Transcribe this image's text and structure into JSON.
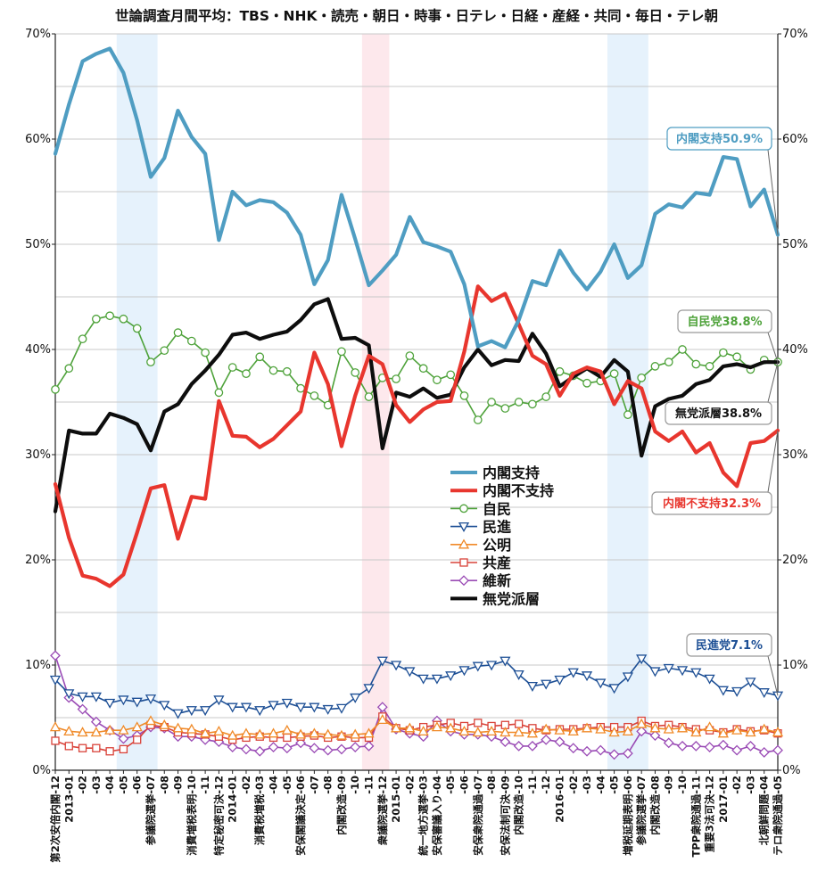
{
  "chart_data": {
    "type": "line",
    "title": "世論調査月間平均：TBS・NHK・読売・朝日・時事・日テレ・日経・産経・共同・毎日・テレ朝",
    "ylim": [
      0,
      70
    ],
    "y_ticks": [
      "0%",
      "10%",
      "20%",
      "30%",
      "40%",
      "50%",
      "60%",
      "70%"
    ],
    "grid": true,
    "x_labels": [
      "第2次安倍内閣-12",
      "2013-01",
      "-02",
      "-03",
      "-04",
      "-05",
      "-06",
      "参議院選挙-07",
      "-08",
      "-09",
      "消費増税表明-10",
      "-11",
      "特定秘密可決-12",
      "2014-01",
      "-02",
      "消費税増税-03",
      "-04",
      "-05",
      "安保閣議決定-06",
      "-07",
      "-08",
      "内閣改造-09",
      "-10",
      "-11",
      "衆議院選挙-12",
      "2015-01",
      "-02",
      "統一地方選挙-03",
      "安保審議入り-04",
      "-05",
      "-06",
      "安保衆院通過-07",
      "-08",
      "安保法制可決-09",
      "内閣改造-10",
      "-11",
      "-12",
      "2016-01",
      "-02",
      "-03",
      "-04",
      "-05",
      "増税延期表明-06",
      "参議院選挙-07",
      "内閣改造-08",
      "-09",
      "-10",
      "TPP衆院通過-11",
      "重要3法可決-12",
      "2017-01",
      "-02",
      "-03",
      "北朝鮮問題-04",
      "テロ衆院通過-05"
    ],
    "shaded_periods": [
      {
        "from": 5,
        "to": 7,
        "color": "#e6f2fc"
      },
      {
        "from": 23,
        "to": 24,
        "color": "#fde8ec"
      },
      {
        "from": 41,
        "to": 43,
        "color": "#e6f2fc"
      }
    ],
    "series": [
      {
        "name": "内閣支持",
        "color": "#4f9dc2",
        "marker": "none",
        "values": [
          58.6,
          63.3,
          67.4,
          68.1,
          68.6,
          66.3,
          61.8,
          56.4,
          58.2,
          62.7,
          60.2,
          58.6,
          50.4,
          55.0,
          53.7,
          54.2,
          54.0,
          53.0,
          50.9,
          46.2,
          48.5,
          54.7,
          50.5,
          46.1,
          47.5,
          49.0,
          52.6,
          50.2,
          49.8,
          49.3,
          46.2,
          40.3,
          40.8,
          40.2,
          42.8,
          46.5,
          46.1,
          49.4,
          47.3,
          45.7,
          47.4,
          50.0,
          46.8,
          48.0,
          52.9,
          53.8,
          53.5,
          54.9,
          54.7,
          58.3,
          58.1,
          53.6,
          55.2,
          50.9
        ]
      },
      {
        "name": "内閣不支持",
        "color": "#e8362e",
        "marker": "none",
        "values": [
          27.2,
          22.1,
          18.5,
          18.2,
          17.5,
          18.6,
          22.6,
          26.8,
          27.1,
          22.0,
          26.0,
          25.8,
          35.1,
          31.8,
          31.7,
          30.7,
          31.5,
          32.8,
          34.1,
          39.7,
          36.7,
          30.8,
          35.6,
          39.4,
          38.6,
          34.7,
          33.1,
          34.3,
          35.0,
          35.1,
          39.8,
          46.0,
          44.6,
          45.3,
          42.4,
          39.4,
          38.6,
          35.6,
          37.7,
          38.3,
          37.9,
          34.8,
          37.0,
          36.3,
          32.2,
          31.3,
          32.2,
          30.2,
          31.1,
          28.3,
          27.0,
          31.1,
          31.3,
          32.3
        ]
      },
      {
        "name": "自民",
        "color": "#4ea23a",
        "marker": "circle",
        "values": [
          36.2,
          38.2,
          41.0,
          42.9,
          43.2,
          42.9,
          42.0,
          38.8,
          39.9,
          41.6,
          40.8,
          39.7,
          35.9,
          38.3,
          37.7,
          39.3,
          38.0,
          37.9,
          36.3,
          35.6,
          34.7,
          39.8,
          37.8,
          35.5,
          37.3,
          37.2,
          39.4,
          38.2,
          37.1,
          37.6,
          35.6,
          33.3,
          35.0,
          34.4,
          35.0,
          34.8,
          35.5,
          37.9,
          37.5,
          36.8,
          37.0,
          37.7,
          33.8,
          37.3,
          38.4,
          38.8,
          40.0,
          38.6,
          38.4,
          39.7,
          39.3,
          38.1,
          39.0,
          38.8
        ]
      },
      {
        "name": "民進",
        "color": "#1d4f95",
        "marker": "triangle-down",
        "values": [
          8.6,
          7.3,
          7.0,
          7.0,
          6.4,
          6.7,
          6.5,
          6.8,
          6.2,
          5.4,
          5.7,
          5.7,
          6.7,
          6.0,
          6.0,
          5.7,
          6.2,
          6.4,
          6.0,
          6.0,
          5.8,
          5.9,
          6.9,
          7.8,
          10.4,
          10.0,
          9.4,
          8.7,
          8.7,
          9.0,
          9.5,
          9.9,
          10.0,
          10.4,
          9.1,
          8.0,
          8.2,
          8.6,
          9.3,
          9.0,
          8.3,
          7.8,
          8.9,
          10.6,
          9.4,
          9.7,
          9.5,
          9.3,
          8.7,
          7.6,
          7.5,
          8.4,
          7.4,
          7.1
        ]
      },
      {
        "name": "公明",
        "color": "#f08a28",
        "marker": "triangle-up",
        "values": [
          4.1,
          3.7,
          3.6,
          3.6,
          3.8,
          3.8,
          4.1,
          4.7,
          4.3,
          4.0,
          3.9,
          3.5,
          3.7,
          3.3,
          3.5,
          3.4,
          3.5,
          3.8,
          3.4,
          3.5,
          3.4,
          3.3,
          3.4,
          3.5,
          4.8,
          4.0,
          4.0,
          3.7,
          4.1,
          4.0,
          3.7,
          3.6,
          3.7,
          3.6,
          3.6,
          3.5,
          3.9,
          3.8,
          3.7,
          4.0,
          3.9,
          3.6,
          3.7,
          4.4,
          4.0,
          3.9,
          4.0,
          3.6,
          4.1,
          3.5,
          3.8,
          3.6,
          3.9,
          3.6
        ]
      },
      {
        "name": "共産",
        "color": "#d9433a",
        "marker": "square",
        "values": [
          2.8,
          2.3,
          2.1,
          2.1,
          1.8,
          2.0,
          2.9,
          4.3,
          4.1,
          3.6,
          3.5,
          3.4,
          3.2,
          2.9,
          3.1,
          3.2,
          3.1,
          3.1,
          3.2,
          3.3,
          3.1,
          3.2,
          3.1,
          3.1,
          5.1,
          4.0,
          3.8,
          4.1,
          4.3,
          4.5,
          4.2,
          4.5,
          4.2,
          4.3,
          4.4,
          4.0,
          3.8,
          3.9,
          3.9,
          4.0,
          4.1,
          4.1,
          4.1,
          4.7,
          4.2,
          4.3,
          4.1,
          3.9,
          3.8,
          3.6,
          3.9,
          3.7,
          3.8,
          3.5
        ]
      },
      {
        "name": "維新",
        "color": "#9a4bb5",
        "marker": "diamond",
        "values": [
          10.9,
          6.9,
          5.8,
          4.6,
          3.8,
          3.0,
          3.3,
          4.1,
          4.0,
          3.2,
          3.2,
          2.9,
          2.7,
          2.2,
          2.0,
          1.8,
          2.2,
          2.1,
          2.6,
          2.1,
          1.9,
          2.0,
          2.2,
          2.3,
          6.0,
          3.9,
          3.5,
          3.2,
          4.7,
          3.7,
          3.4,
          3.4,
          3.2,
          2.7,
          2.3,
          2.3,
          2.9,
          2.7,
          2.1,
          1.8,
          1.9,
          1.5,
          1.6,
          3.7,
          3.3,
          2.6,
          2.3,
          2.3,
          2.2,
          2.4,
          1.9,
          2.3,
          1.7,
          1.9
        ]
      },
      {
        "name": "無党派層",
        "color": "#0d0d0d",
        "marker": "none",
        "values": [
          24.6,
          32.3,
          32.0,
          32.0,
          33.9,
          33.5,
          32.9,
          30.4,
          34.1,
          34.8,
          36.7,
          38.0,
          39.5,
          41.4,
          41.6,
          41.0,
          41.4,
          41.7,
          42.8,
          44.3,
          44.8,
          41.0,
          41.1,
          40.4,
          30.6,
          35.9,
          35.5,
          36.3,
          35.4,
          35.7,
          38.3,
          40.0,
          38.5,
          39.0,
          38.9,
          41.5,
          39.6,
          36.5,
          37.4,
          38.2,
          37.4,
          39.0,
          37.9,
          29.9,
          34.6,
          35.3,
          35.6,
          36.7,
          37.1,
          38.4,
          38.6,
          38.3,
          38.8,
          38.8
        ]
      }
    ],
    "callouts": [
      {
        "text": "内閣支持50.9%",
        "series": 0,
        "color": "#4f9dc2",
        "border": "#4f9dc2"
      },
      {
        "text": "自民党38.8%",
        "series": 2,
        "color": "#4ea23a",
        "border": "#999999"
      },
      {
        "text": "無党派層38.8%",
        "series": 7,
        "color": "#111111",
        "border": "#999999"
      },
      {
        "text": "内閣不支持32.3%",
        "series": 1,
        "color": "#e8362e",
        "border": "#999999"
      },
      {
        "text": "民進党7.1%",
        "series": 3,
        "color": "#1d4f95",
        "border": "#999999"
      }
    ]
  }
}
